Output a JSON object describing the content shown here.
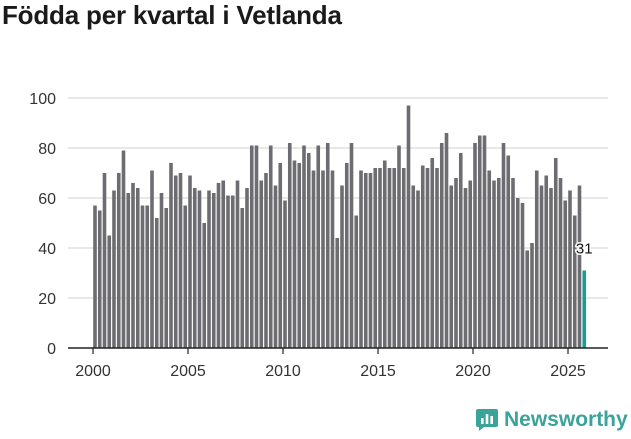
{
  "colors": {
    "bar": "#6d6c70",
    "highlight": "#1a9c95",
    "grid": "#d9d9d9",
    "axis": "#222222",
    "brand": "#3aa39a"
  },
  "brand": {
    "name": "Newsworthy",
    "icon": "speech-bubble-chart-icon"
  },
  "chart_data": {
    "type": "bar",
    "title": "Födda per kvartal i Vetlanda",
    "xlabel": "",
    "ylabel": "",
    "ylim": [
      0,
      100
    ],
    "yticks": [
      0,
      20,
      40,
      60,
      80,
      100
    ],
    "xticks": [
      2000,
      2005,
      2010,
      2015,
      2020,
      2025
    ],
    "grid": true,
    "start": "2000 Q1",
    "values": [
      57,
      55,
      70,
      45,
      63,
      70,
      79,
      62,
      66,
      64,
      57,
      57,
      71,
      52,
      62,
      56,
      74,
      69,
      70,
      57,
      69,
      64,
      63,
      50,
      63,
      62,
      66,
      67,
      61,
      61,
      67,
      56,
      64,
      81,
      81,
      67,
      70,
      81,
      65,
      74,
      59,
      82,
      75,
      74,
      81,
      78,
      71,
      81,
      71,
      82,
      71,
      44,
      65,
      74,
      82,
      53,
      71,
      70,
      70,
      72,
      72,
      75,
      72,
      72,
      81,
      72,
      97,
      65,
      63,
      73,
      72,
      76,
      72,
      82,
      86,
      65,
      68,
      78,
      64,
      67,
      82,
      85,
      85,
      71,
      67,
      68,
      82,
      77,
      68,
      60,
      58,
      39,
      42,
      71,
      65,
      69,
      64,
      76,
      68,
      59,
      63,
      53,
      65,
      31
    ],
    "highlight_label": "31"
  }
}
